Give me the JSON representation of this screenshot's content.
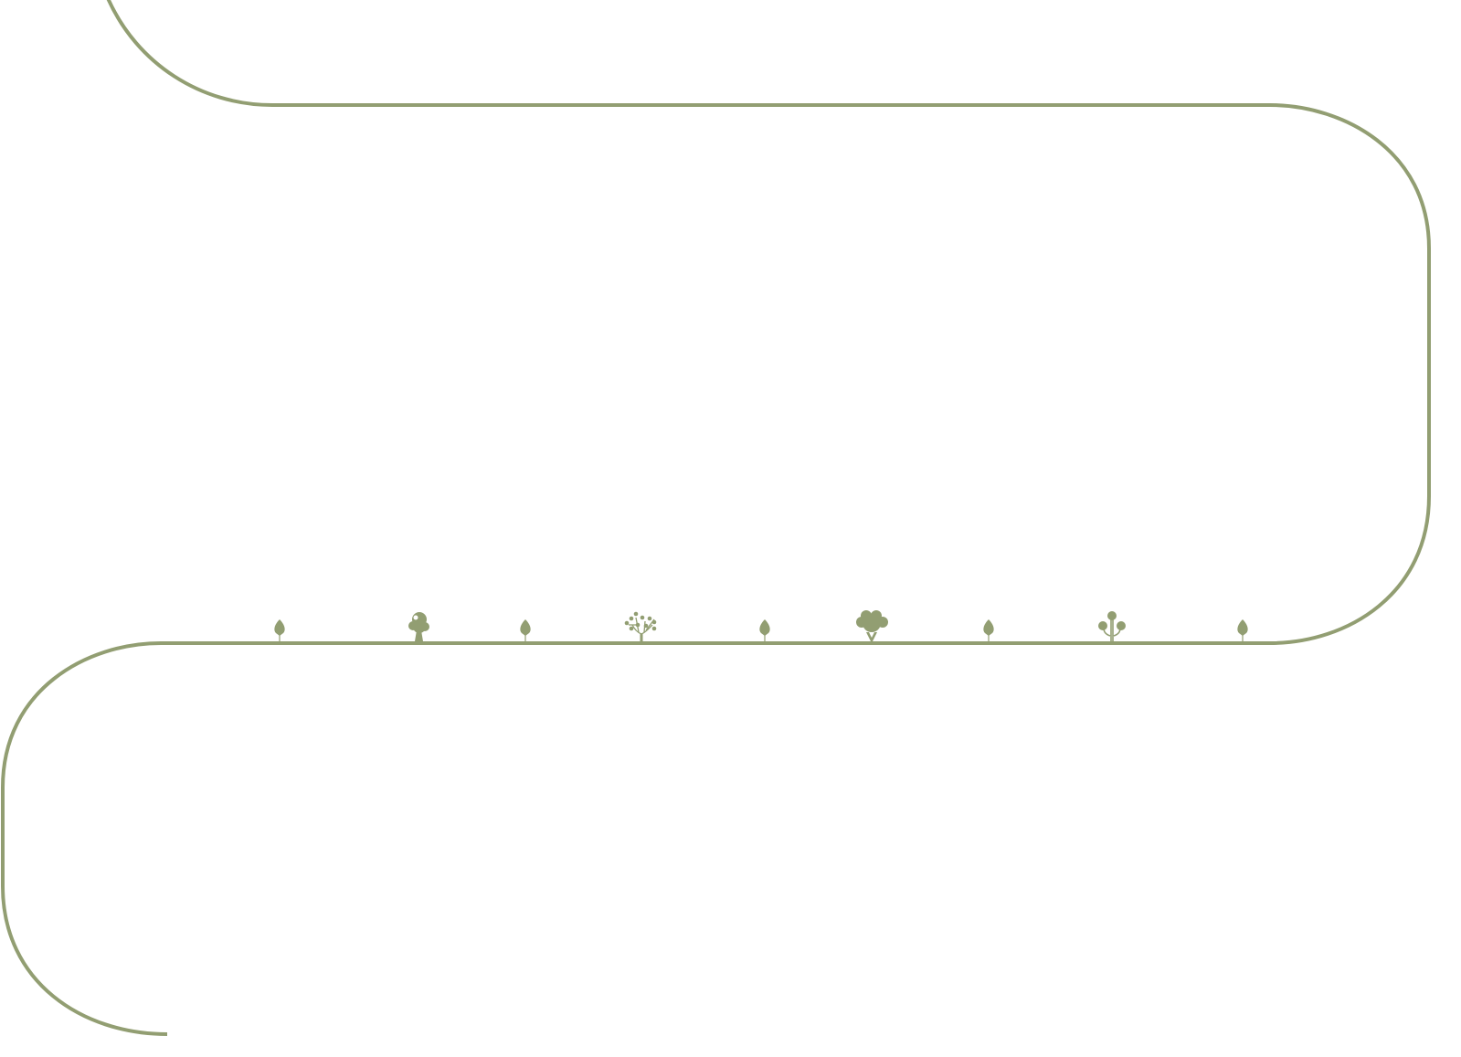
{
  "colors": {
    "path": "#929e72",
    "background": "#ffffff"
  },
  "trees": [
    {
      "icon": "leaf-sapling-icon"
    },
    {
      "icon": "round-tree-icon"
    },
    {
      "icon": "leaf-sapling-icon"
    },
    {
      "icon": "branching-dot-tree-icon"
    },
    {
      "icon": "leaf-sapling-icon"
    },
    {
      "icon": "bushy-tree-icon"
    },
    {
      "icon": "leaf-sapling-icon"
    },
    {
      "icon": "curly-tree-icon"
    },
    {
      "icon": "leaf-sapling-icon"
    }
  ]
}
